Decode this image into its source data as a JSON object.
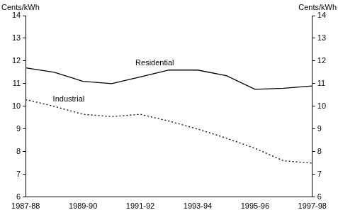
{
  "chart_data": {
    "type": "line",
    "ylabel": "Cents/kWh",
    "y2label": "Cents/kWh",
    "categories": [
      "1987-88",
      null,
      "1989-90",
      null,
      "1991-92",
      null,
      "1993-94",
      null,
      "1995-96",
      null,
      "1997-98"
    ],
    "series": [
      {
        "name": "Residential",
        "color": "#000000",
        "line_style": "solid",
        "values": [
          11.7,
          11.5,
          11.1,
          11.0,
          11.3,
          11.6,
          11.6,
          11.35,
          10.75,
          10.8,
          10.9
        ]
      },
      {
        "name": "Industrial",
        "color": "#000000",
        "line_style": "dotted",
        "values": [
          10.3,
          10.0,
          9.65,
          9.55,
          9.65,
          9.35,
          9.0,
          8.6,
          8.15,
          7.6,
          7.5
        ]
      }
    ],
    "ylim": [
      6,
      14
    ],
    "yticks": [
      6,
      7,
      8,
      9,
      10,
      11,
      12,
      13,
      14
    ],
    "y2lim": [
      6,
      14
    ],
    "y2ticks": [
      6,
      7,
      8,
      9,
      10,
      11,
      12,
      13,
      14
    ],
    "grid": false
  }
}
